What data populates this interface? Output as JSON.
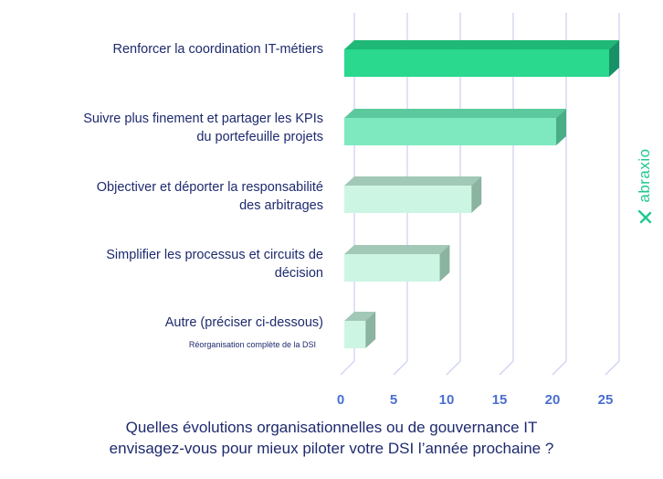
{
  "chart_data": {
    "type": "bar",
    "orientation": "horizontal",
    "categories": [
      "Renforcer la coordination IT-métiers",
      "Suivre plus finement et partager les KPIs du portefeuille projets",
      "Objectiver et déporter la responsabilité des arbitrages",
      "Simplifier les processus et circuits de décision",
      "Autre (préciser ci-dessous)"
    ],
    "category_lines": [
      [
        "Renforcer la coordination IT-métiers"
      ],
      [
        "Suivre plus finement et partager les KPIs",
        "du portefeuille projets"
      ],
      [
        "Objectiver et déporter la responsabilité",
        "des arbitrages"
      ],
      [
        "Simplifier les processus et circuits de",
        "décision"
      ],
      [
        "Autre (préciser ci-dessous)"
      ]
    ],
    "values": [
      25,
      20,
      12,
      9,
      2
    ],
    "annotations": [
      "Réorganisation complète de la DSI"
    ],
    "xlim": [
      0,
      25
    ],
    "xticks": [
      0,
      5,
      10,
      15,
      20,
      25
    ],
    "title": "Quelles évolutions organisationnelles ou de gouvernance IT envisagez-vous pour mieux piloter votre DSI l’année prochaine ?",
    "xlabel": "",
    "ylabel": "",
    "grid": true,
    "style": "3d",
    "colors": {
      "highlight_front": "#2ad88e",
      "highlight_top": "#1fb877",
      "highlight_side": "#179266",
      "mid_front": "#7ee9bf",
      "mid_top": "#5cc99d",
      "mid_side": "#49ad86",
      "light_front": "#cdf5e4",
      "light_top": "#a2c8b7",
      "light_side": "#8ab3a0",
      "grid": "#cfd2f2",
      "tick_text": "#4a6fd0"
    }
  },
  "question": {
    "line1": "Quelles évolutions organisationnelles ou de gouvernance IT",
    "line2": "envisagez-vous pour mieux piloter votre DSI l’année prochaine ?"
  },
  "brand": {
    "name": "abraxio",
    "color": "#1fc98e"
  }
}
